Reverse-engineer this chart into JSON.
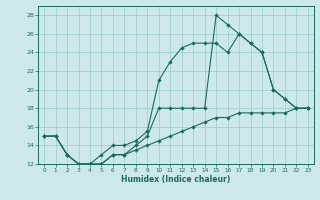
{
  "xlabel": "Humidex (Indice chaleur)",
  "xlim": [
    -0.5,
    23.5
  ],
  "ylim": [
    12,
    29
  ],
  "yticks": [
    12,
    14,
    16,
    18,
    20,
    22,
    24,
    26,
    28
  ],
  "xticks": [
    0,
    1,
    2,
    3,
    4,
    5,
    6,
    7,
    8,
    9,
    10,
    11,
    12,
    13,
    14,
    15,
    16,
    17,
    18,
    19,
    20,
    21,
    22,
    23
  ],
  "bg_color": "#cce8e8",
  "grid_color": "#99cccc",
  "line_color": "#1a6b5a",
  "line1_x": [
    0,
    1,
    2,
    3,
    4,
    5,
    6,
    7,
    8,
    9,
    10,
    11,
    12,
    13,
    14,
    15,
    16,
    17,
    18,
    19,
    20,
    21,
    22,
    23
  ],
  "line1_y": [
    15,
    15,
    13,
    12,
    12,
    12,
    13,
    13,
    13.5,
    14,
    14.5,
    15,
    15.5,
    16,
    16.5,
    17,
    17,
    17.5,
    17.5,
    17.5,
    17.5,
    17.5,
    18,
    18
  ],
  "line2_x": [
    0,
    1,
    2,
    3,
    4,
    5,
    6,
    7,
    8,
    9,
    10,
    11,
    12,
    13,
    14,
    15,
    16,
    17,
    18,
    19,
    20,
    21,
    22,
    23
  ],
  "line2_y": [
    15,
    15,
    13,
    12,
    12,
    12,
    13,
    13,
    14,
    15,
    18,
    18,
    18,
    18,
    18,
    28,
    27,
    26,
    25,
    24,
    20,
    19,
    18,
    18
  ],
  "line3_x": [
    0,
    1,
    2,
    3,
    4,
    5,
    6,
    7,
    8,
    9,
    10,
    11,
    12,
    13,
    14,
    15,
    16,
    17,
    18,
    19,
    20,
    21,
    22,
    23
  ],
  "line3_y": [
    15,
    15,
    13,
    12,
    12,
    13,
    14,
    14,
    14.5,
    15.5,
    21,
    23,
    24.5,
    25,
    25,
    25,
    24,
    26,
    25,
    24,
    20,
    19,
    18,
    18
  ]
}
